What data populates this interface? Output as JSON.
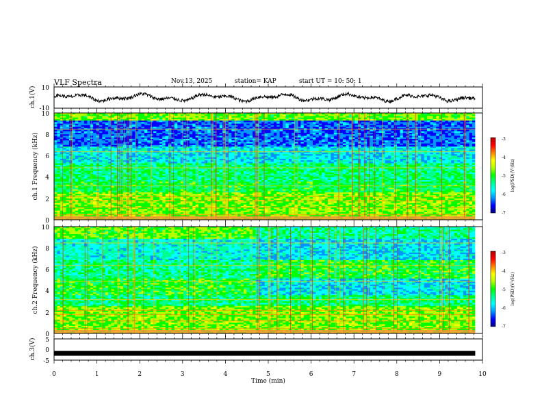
{
  "header": {
    "title": "VLF Spectra",
    "date": "Nov.13, 2025",
    "station": "station= KAP",
    "start_ut": "start  UT =   10: 50: 1"
  },
  "chart_data": [
    {
      "id": "ch1-waveform",
      "type": "line",
      "ylabel": "ch.1(V)",
      "ylim": [
        -10,
        10
      ],
      "yticks": [
        "10",
        "-10"
      ],
      "xlim": [
        0,
        10
      ],
      "x_extent": [
        0,
        9.83
      ],
      "series": [
        {
          "name": "ch.1 voltage",
          "mean": 0,
          "amplitude": 4
        }
      ]
    },
    {
      "id": "ch1-spectrogram",
      "type": "heatmap",
      "ylabel": "ch.1 Frequency (kHz)",
      "ylim": [
        0,
        10
      ],
      "yticks": [
        "10",
        "8",
        "6",
        "4",
        "2",
        "0"
      ],
      "xlim": [
        0,
        10
      ],
      "x_extent": [
        0,
        9.83
      ],
      "colorbar": {
        "label": "log(PSD)(V²/Hz)",
        "range": [
          -7,
          -3
        ],
        "ticks": [
          "-3",
          "-4",
          "-5",
          "-6",
          "-7"
        ]
      }
    },
    {
      "id": "ch2-spectrogram",
      "type": "heatmap",
      "ylabel": "ch.2 Frequency (kHz)",
      "ylim": [
        0,
        10
      ],
      "yticks": [
        "10",
        "8",
        "6",
        "4",
        "2",
        "0"
      ],
      "xlim": [
        0,
        10
      ],
      "x_extent": [
        0,
        9.83
      ],
      "colorbar": {
        "label": "log(PSD)(V²/Hz)",
        "range": [
          -7,
          -3
        ],
        "ticks": [
          "-3",
          "-4",
          "-5",
          "-6",
          "-7"
        ]
      }
    },
    {
      "id": "ch3-voltage",
      "type": "line",
      "ylabel": "ch.3(V)",
      "ylim": [
        -5,
        5
      ],
      "yticks": [
        "5",
        "0",
        "-5"
      ],
      "xlim": [
        0,
        10
      ],
      "x_extent": [
        0,
        9.83
      ],
      "series": [
        {
          "name": "ch.3 voltage",
          "value": -1.8
        }
      ]
    }
  ],
  "x_axis": {
    "label": "Time  (min)",
    "ticks": [
      "0",
      "1",
      "2",
      "3",
      "4",
      "5",
      "6",
      "7",
      "8",
      "9",
      "10"
    ]
  },
  "colormap": [
    "#000080",
    "#0000ff",
    "#0096ff",
    "#00ffff",
    "#00ff90",
    "#00ff00",
    "#b4ff00",
    "#ffff00",
    "#ff8000",
    "#ff0000",
    "#b40000"
  ]
}
